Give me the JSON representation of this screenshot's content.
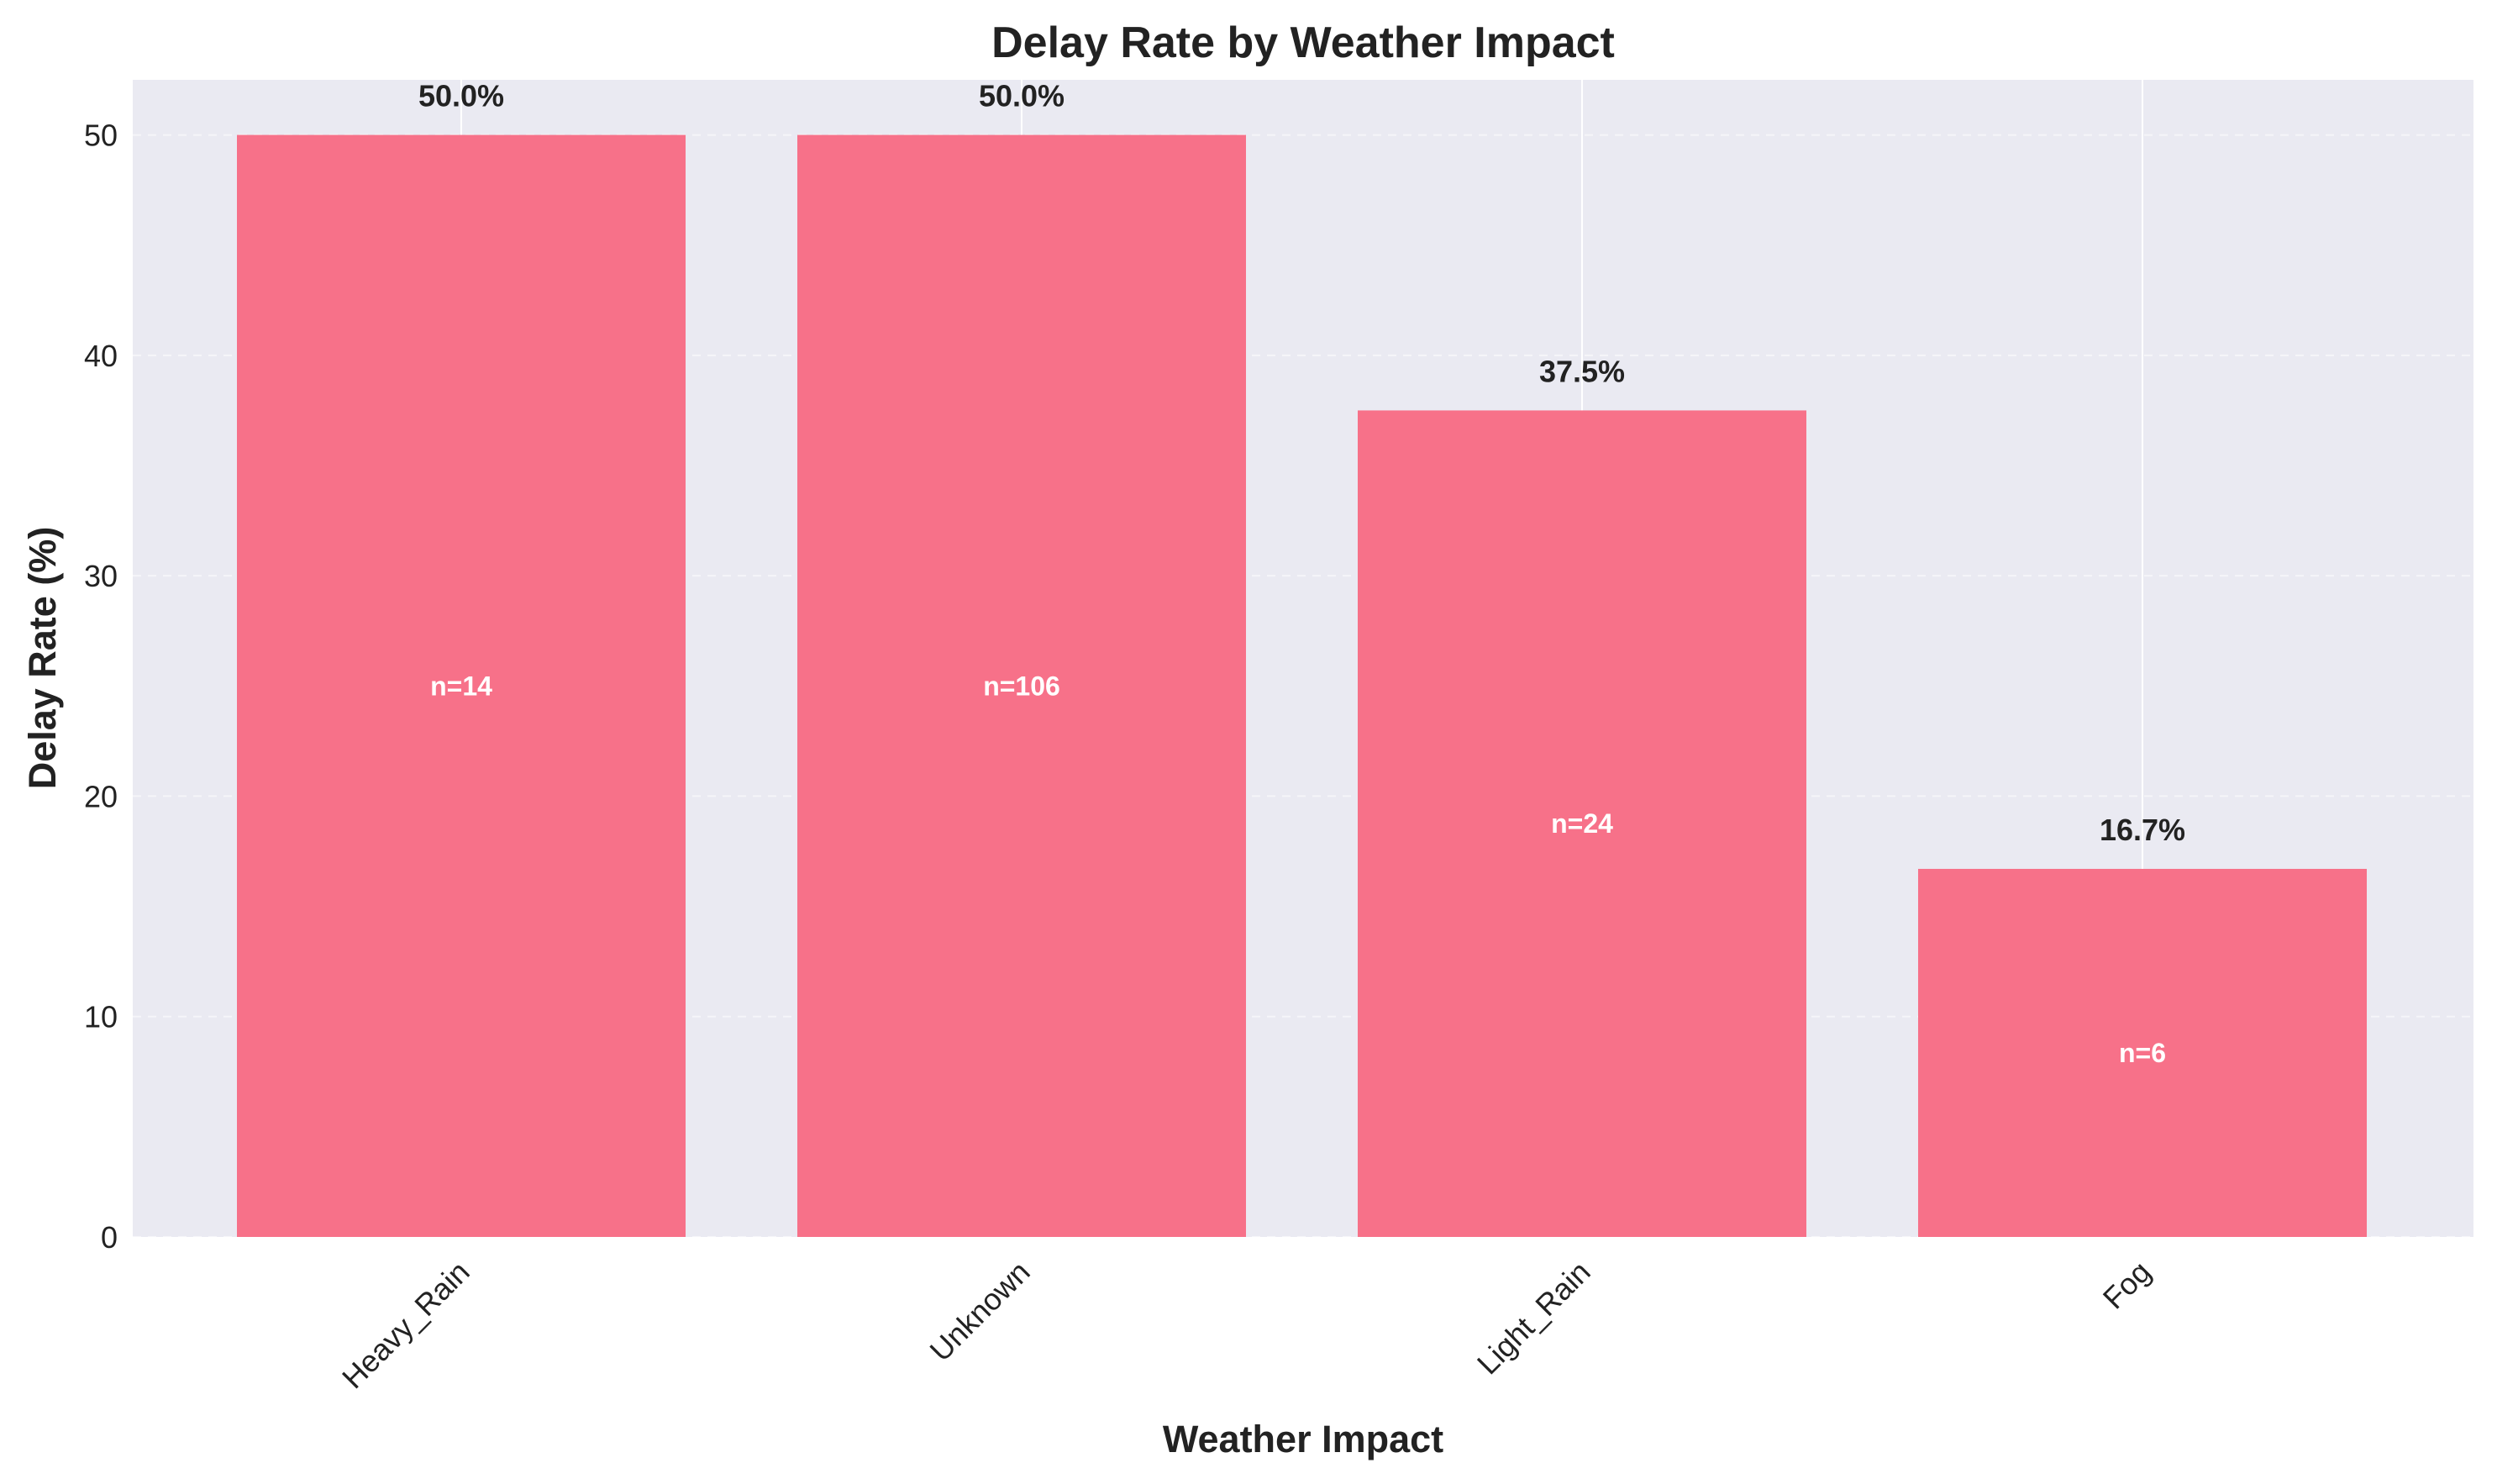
{
  "chart_data": {
    "type": "bar",
    "title": "Delay Rate by Weather Impact",
    "xlabel": "Weather Impact",
    "ylabel": "Delay Rate (%)",
    "categories": [
      "Heavy_Rain",
      "Unknown",
      "Light_Rain",
      "Fog"
    ],
    "values": [
      50.0,
      50.0,
      37.5,
      16.7
    ],
    "value_labels": [
      "50.0%",
      "50.0%",
      "37.5%",
      "16.7%"
    ],
    "count_labels": [
      "n=14",
      "n=106",
      "n=24",
      "n=6"
    ],
    "ylim": [
      0,
      52.5
    ],
    "yticks": [
      0,
      10,
      20,
      30,
      40,
      50
    ],
    "grid": true,
    "bar_color": "#f77189",
    "plot_background": "#eaeaf2"
  }
}
